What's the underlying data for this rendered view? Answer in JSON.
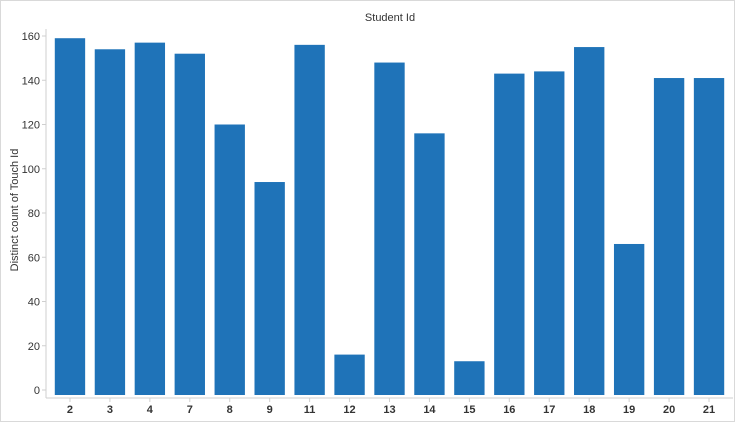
{
  "chart_data": {
    "type": "bar",
    "title": "Student Id",
    "xlabel": "",
    "ylabel": "Distinct count of Touch Id",
    "categories": [
      "2",
      "3",
      "4",
      "7",
      "8",
      "9",
      "11",
      "12",
      "13",
      "14",
      "15",
      "16",
      "17",
      "18",
      "19",
      "20",
      "21"
    ],
    "values": [
      159,
      154,
      157,
      152,
      120,
      94,
      156,
      16,
      148,
      116,
      13,
      143,
      144,
      155,
      66,
      141,
      141
    ],
    "ylim": [
      0,
      170
    ],
    "yticks": [
      0,
      20,
      40,
      60,
      80,
      100,
      120,
      140,
      160
    ],
    "grid": false,
    "legend": "none",
    "colors": {
      "bar": "#1f73b8",
      "axis": "#cfcfcf",
      "text": "#333333"
    }
  }
}
